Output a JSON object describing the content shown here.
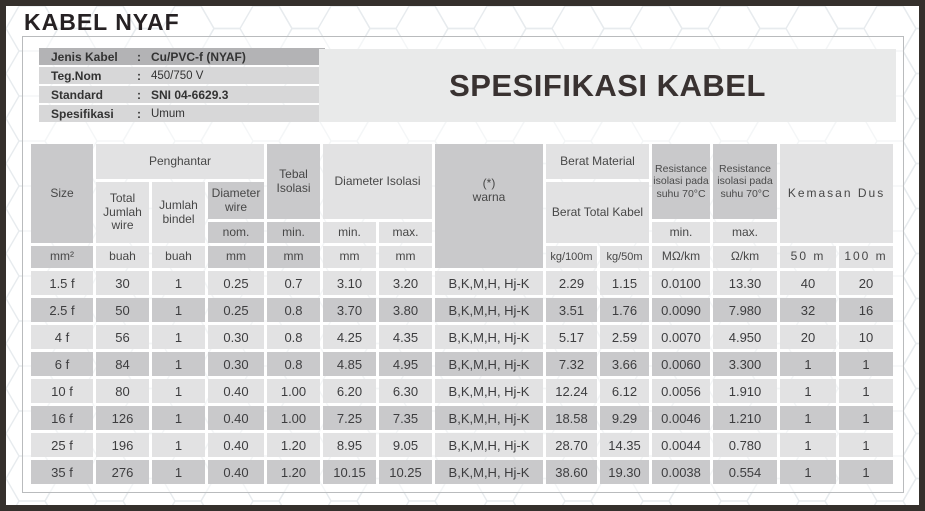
{
  "page": {
    "title": "KABEL NYAF"
  },
  "info": {
    "rows": [
      {
        "label": "Jenis Kabel",
        "sep": ":",
        "value": "Cu/PVC-f (NYAF)"
      },
      {
        "label": "Teg.Nom",
        "sep": ":",
        "value": "450/750 V"
      },
      {
        "label": "Standard",
        "sep": ":",
        "value": "SNI 04-6629.3"
      },
      {
        "label": "Spesifikasi",
        "sep": ":",
        "value": "Umum"
      }
    ]
  },
  "banner": {
    "title": "SPESIFIKASI KABEL"
  },
  "table": {
    "headers": {
      "size": "Size",
      "penghantar": "Penghantar",
      "total_jumlah_wire": "Total Jumlah wire",
      "jumlah_bindel": "Jumlah bindel",
      "diameter_wire": "Diameter wire",
      "tebal_isolasi": "Tebal Isolasi",
      "diameter_isolasi": "Diameter Isolasi",
      "warna_star": "(*)",
      "warna": "warna",
      "berat_material": "Berat Material",
      "berat_total_kabel": "Berat Total Kabel",
      "resistance_min": "Resistance isolasi pada suhu 70°C",
      "resistance_max": "Resistance isolasi pada suhu 70°C",
      "kemasan_dus": "Kemasan Dus",
      "nom": "nom.",
      "min": "min.",
      "max": "max."
    },
    "units": {
      "size": "mm²",
      "count": "buah",
      "mm": "mm",
      "kg100": "kg/100m",
      "kg50": "kg/50m",
      "mohm": "MΩ/km",
      "ohm": "Ω/km",
      "pack50": "50 m",
      "pack100": "100 m"
    },
    "column_keys": [
      "size",
      "total-jumlah-wire",
      "jumlah-bindel",
      "diameter-wire-nom",
      "tebal-isolasi-min",
      "diameter-isolasi-min",
      "diameter-isolasi-max",
      "warna",
      "berat-kg-100m",
      "berat-kg-50m",
      "resistance-min-mohm-km",
      "resistance-max-ohm-km",
      "kemasan-50m",
      "kemasan-100m"
    ],
    "rows": [
      [
        "1.5 f",
        "30",
        "1",
        "0.25",
        "0.7",
        "3.10",
        "3.20",
        "B,K,M,H, Hj-K",
        "2.29",
        "1.15",
        "0.0100",
        "13.30",
        "40",
        "20"
      ],
      [
        "2.5 f",
        "50",
        "1",
        "0.25",
        "0.8",
        "3.70",
        "3.80",
        "B,K,M,H, Hj-K",
        "3.51",
        "1.76",
        "0.0090",
        "7.980",
        "32",
        "16"
      ],
      [
        "4 f",
        "56",
        "1",
        "0.30",
        "0.8",
        "4.25",
        "4.35",
        "B,K,M,H, Hj-K",
        "5.17",
        "2.59",
        "0.0070",
        "4.950",
        "20",
        "10"
      ],
      [
        "6 f",
        "84",
        "1",
        "0.30",
        "0.8",
        "4.85",
        "4.95",
        "B,K,M,H, Hj-K",
        "7.32",
        "3.66",
        "0.0060",
        "3.300",
        "1",
        "1"
      ],
      [
        "10 f",
        "80",
        "1",
        "0.40",
        "1.00",
        "6.20",
        "6.30",
        "B,K,M,H, Hj-K",
        "12.24",
        "6.12",
        "0.0056",
        "1.910",
        "1",
        "1"
      ],
      [
        "16 f",
        "126",
        "1",
        "0.40",
        "1.00",
        "7.25",
        "7.35",
        "B,K,M,H, Hj-K",
        "18.58",
        "9.29",
        "0.0046",
        "1.210",
        "1",
        "1"
      ],
      [
        "25 f",
        "196",
        "1",
        "0.40",
        "1.20",
        "8.95",
        "9.05",
        "B,K,M,H, Hj-K",
        "28.70",
        "14.35",
        "0.0044",
        "0.780",
        "1",
        "1"
      ],
      [
        "35 f",
        "276",
        "1",
        "0.40",
        "1.20",
        "10.15",
        "10.25",
        "B,K,M,H, Hj-K",
        "38.60",
        "19.30",
        "0.0038",
        "0.554",
        "1",
        "1"
      ]
    ]
  }
}
